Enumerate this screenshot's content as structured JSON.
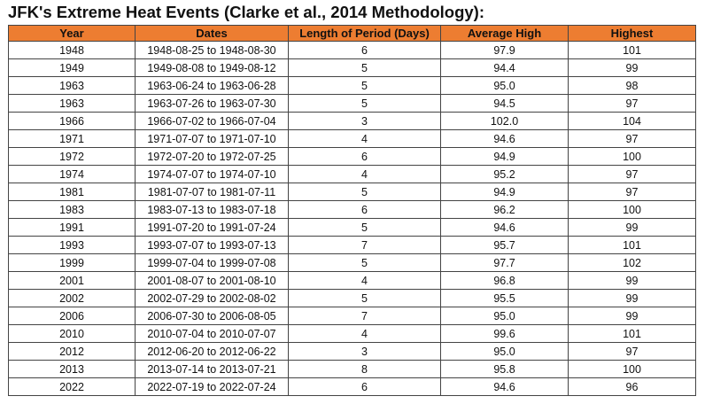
{
  "header": {
    "title": "JFK's Extreme Heat Events (Clarke et al., 2014 Methodology):"
  },
  "table": {
    "columns": [
      "Year",
      "Dates",
      "Length of Period (Days)",
      "Average High",
      "Highest"
    ],
    "rows": [
      [
        "1948",
        "1948-08-25 to 1948-08-30",
        "6",
        "97.9",
        "101"
      ],
      [
        "1949",
        "1949-08-08 to 1949-08-12",
        "5",
        "94.4",
        "99"
      ],
      [
        "1963",
        "1963-06-24 to 1963-06-28",
        "5",
        "95.0",
        "98"
      ],
      [
        "1963",
        "1963-07-26 to 1963-07-30",
        "5",
        "94.5",
        "97"
      ],
      [
        "1966",
        "1966-07-02 to 1966-07-04",
        "3",
        "102.0",
        "104"
      ],
      [
        "1971",
        "1971-07-07 to 1971-07-10",
        "4",
        "94.6",
        "97"
      ],
      [
        "1972",
        "1972-07-20 to 1972-07-25",
        "6",
        "94.9",
        "100"
      ],
      [
        "1974",
        "1974-07-07 to 1974-07-10",
        "4",
        "95.2",
        "97"
      ],
      [
        "1981",
        "1981-07-07 to 1981-07-11",
        "5",
        "94.9",
        "97"
      ],
      [
        "1983",
        "1983-07-13 to 1983-07-18",
        "6",
        "96.2",
        "100"
      ],
      [
        "1991",
        "1991-07-20 to 1991-07-24",
        "5",
        "94.6",
        "99"
      ],
      [
        "1993",
        "1993-07-07 to 1993-07-13",
        "7",
        "95.7",
        "101"
      ],
      [
        "1999",
        "1999-07-04 to 1999-07-08",
        "5",
        "97.7",
        "102"
      ],
      [
        "2001",
        "2001-08-07 to 2001-08-10",
        "4",
        "96.8",
        "99"
      ],
      [
        "2002",
        "2002-07-29 to 2002-08-02",
        "5",
        "95.5",
        "99"
      ],
      [
        "2006",
        "2006-07-30 to 2006-08-05",
        "7",
        "95.0",
        "99"
      ],
      [
        "2010",
        "2010-07-04 to 2010-07-07",
        "4",
        "99.6",
        "101"
      ],
      [
        "2012",
        "2012-06-20 to 2012-06-22",
        "3",
        "95.0",
        "97"
      ],
      [
        "2013",
        "2013-07-14 to 2013-07-21",
        "8",
        "95.8",
        "100"
      ],
      [
        "2022",
        "2022-07-19 to 2022-07-24",
        "6",
        "94.6",
        "96"
      ]
    ]
  }
}
